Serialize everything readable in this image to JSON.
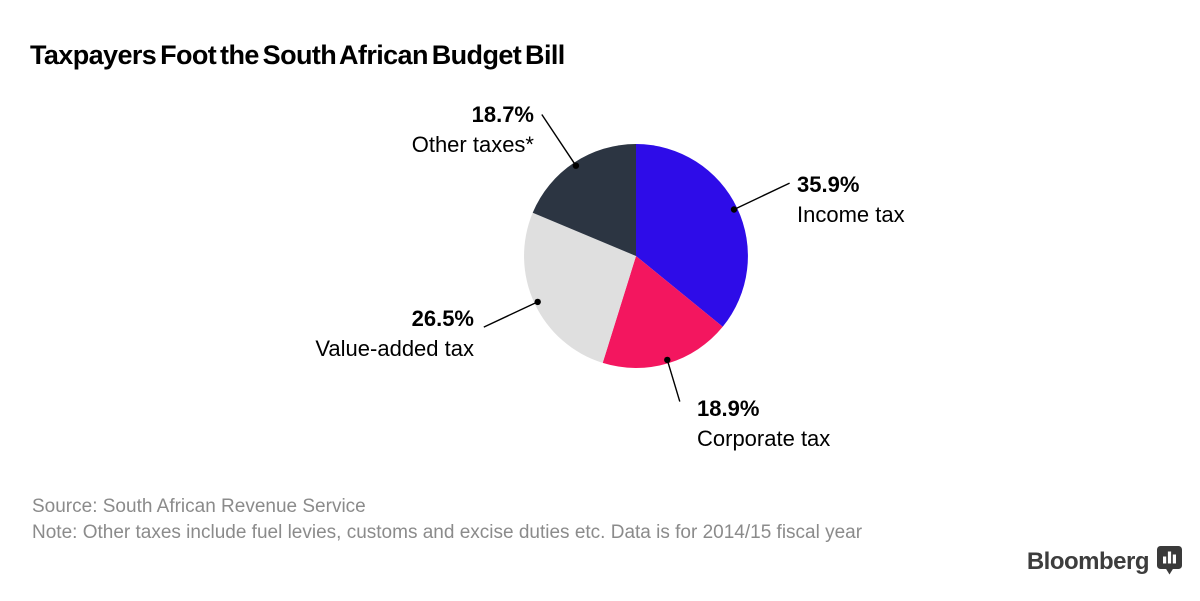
{
  "title": "Taxpayers Foot the South African Budget Bill",
  "chart_data": {
    "type": "pie",
    "title": "Taxpayers Foot the South African Budget Bill",
    "start_angle_deg": 0,
    "direction": "clockwise",
    "legend_position": "external-labels-with-leader-lines",
    "slices": [
      {
        "label": "Income tax",
        "value": 35.9,
        "pct_label": "35.9%",
        "color": "#2E0CE8"
      },
      {
        "label": "Corporate tax",
        "value": 18.9,
        "pct_label": "18.9%",
        "color": "#F3165F"
      },
      {
        "label": "Value-added tax",
        "value": 26.5,
        "pct_label": "26.5%",
        "color": "#DFDFDF"
      },
      {
        "label": "Other taxes*",
        "value": 18.7,
        "pct_label": "18.7%",
        "color": "#2C3542"
      }
    ]
  },
  "footer": {
    "source": "Source: South African Revenue Service",
    "note": "Note: Other taxes include fuel levies, customs and excise duties etc. Data is for 2014/15 fiscal year"
  },
  "branding": {
    "logo_text": "Bloomberg",
    "logo_icon": "bar-chart-speech-bubble-icon",
    "logo_color": "#3D3D3D"
  },
  "colors": {
    "leader_line": "#000000",
    "footer_text": "#8B8B8B",
    "background": "#FFFFFF"
  }
}
